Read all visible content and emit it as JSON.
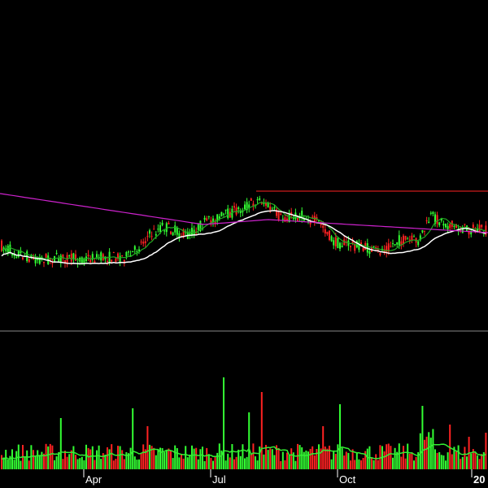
{
  "colors": {
    "background": "#000000",
    "up": "#33ff33",
    "down": "#ff2222",
    "ma_fast": "#22aa22",
    "ma_slow": "#ffffff",
    "ma_long": "#cc22cc",
    "resistance": "#ff2222",
    "divider": "#888888",
    "volume_ma": "#33ee33",
    "tick_text": "#ffffff"
  },
  "chart_data": {
    "type": "candlestick",
    "x_ticks": [
      "Apr",
      "Jul",
      "Oct",
      "20"
    ],
    "price_panel": {
      "resistance_level": 235
    },
    "volume_panel": {}
  }
}
